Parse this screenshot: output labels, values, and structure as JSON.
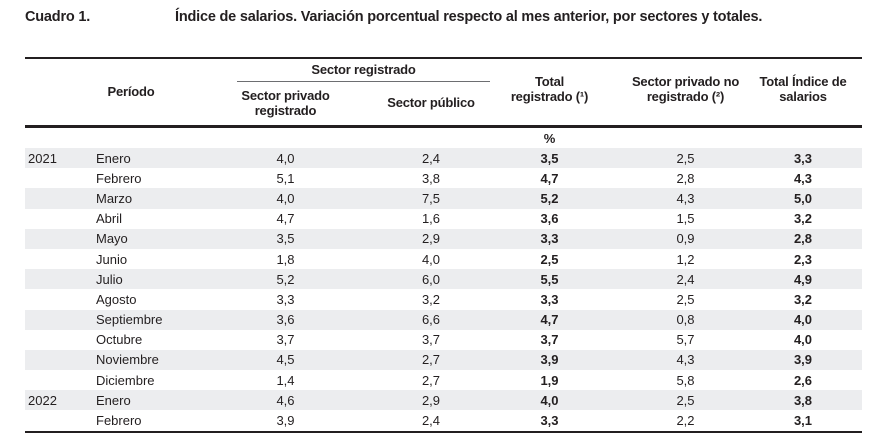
{
  "title": {
    "label": "Cuadro 1.",
    "text": "Índice de salarios. Variación porcentual respecto al mes anterior, por sectores y totales."
  },
  "table": {
    "columns": {
      "period": "Período",
      "registered_group": "Sector registrado",
      "private_registered": "Sector privado registrado",
      "public": "Sector público",
      "total_registered": "Total registrado (¹)",
      "private_unregistered": "Sector privado no registrado (²)",
      "total_wage_index": "Total Índice de salarios"
    },
    "unit_label": "%",
    "rows": [
      {
        "year": "2021",
        "month": "Enero",
        "private_registered": "4,0",
        "public": "2,4",
        "total_registered": "3,5",
        "private_unregistered": "2,5",
        "total_index": "3,3"
      },
      {
        "year": "",
        "month": "Febrero",
        "private_registered": "5,1",
        "public": "3,8",
        "total_registered": "4,7",
        "private_unregistered": "2,8",
        "total_index": "4,3"
      },
      {
        "year": "",
        "month": "Marzo",
        "private_registered": "4,0",
        "public": "7,5",
        "total_registered": "5,2",
        "private_unregistered": "4,3",
        "total_index": "5,0"
      },
      {
        "year": "",
        "month": "Abril",
        "private_registered": "4,7",
        "public": "1,6",
        "total_registered": "3,6",
        "private_unregistered": "1,5",
        "total_index": "3,2"
      },
      {
        "year": "",
        "month": "Mayo",
        "private_registered": "3,5",
        "public": "2,9",
        "total_registered": "3,3",
        "private_unregistered": "0,9",
        "total_index": "2,8"
      },
      {
        "year": "",
        "month": "Junio",
        "private_registered": "1,8",
        "public": "4,0",
        "total_registered": "2,5",
        "private_unregistered": "1,2",
        "total_index": "2,3"
      },
      {
        "year": "",
        "month": "Julio",
        "private_registered": "5,2",
        "public": "6,0",
        "total_registered": "5,5",
        "private_unregistered": "2,4",
        "total_index": "4,9"
      },
      {
        "year": "",
        "month": "Agosto",
        "private_registered": "3,3",
        "public": "3,2",
        "total_registered": "3,3",
        "private_unregistered": "2,5",
        "total_index": "3,2"
      },
      {
        "year": "",
        "month": "Septiembre",
        "private_registered": "3,6",
        "public": "6,6",
        "total_registered": "4,7",
        "private_unregistered": "0,8",
        "total_index": "4,0"
      },
      {
        "year": "",
        "month": "Octubre",
        "private_registered": "3,7",
        "public": "3,7",
        "total_registered": "3,7",
        "private_unregistered": "5,7",
        "total_index": "4,0"
      },
      {
        "year": "",
        "month": "Noviembre",
        "private_registered": "4,5",
        "public": "2,7",
        "total_registered": "3,9",
        "private_unregistered": "4,3",
        "total_index": "3,9"
      },
      {
        "year": "",
        "month": "Diciembre",
        "private_registered": "1,4",
        "public": "2,7",
        "total_registered": "1,9",
        "private_unregistered": "5,8",
        "total_index": "2,6"
      },
      {
        "year": "2022",
        "month": "Enero",
        "private_registered": "4,6",
        "public": "2,9",
        "total_registered": "4,0",
        "private_unregistered": "2,5",
        "total_index": "3,8"
      },
      {
        "year": "",
        "month": "Febrero",
        "private_registered": "3,9",
        "public": "2,4",
        "total_registered": "3,3",
        "private_unregistered": "2,2",
        "total_index": "3,1"
      }
    ]
  },
  "colors": {
    "ink": "#231f20",
    "group_rule": "#6d6e71",
    "row_stripe": "#ecedef"
  }
}
